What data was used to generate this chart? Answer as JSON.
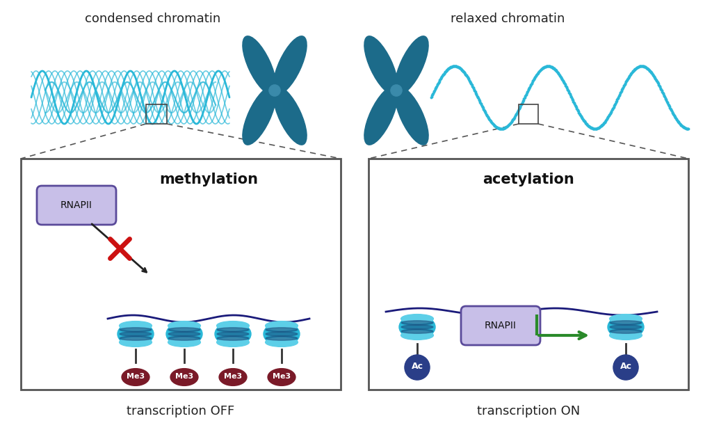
{
  "left_label": "condensed chromatin",
  "right_label": "relaxed chromatin",
  "left_process": "methylation",
  "right_process": "acetylation",
  "left_transcription": "transcription OFF",
  "right_transcription": "transcription ON",
  "left_marker": "Me3",
  "right_marker": "Ac",
  "rnapii_label": "RNAPII",
  "chromosome_color": "#1c6b8a",
  "chromatin_solid_color": "#2ab8d8",
  "chromatin_dot_color": "#2ab8d8",
  "histone_main_color": "#2ab8d8",
  "histone_top_color": "#5dcfe8",
  "histone_stripe_color": "#1a4a7a",
  "me3_color": "#7a1a28",
  "ac_color": "#2a3e88",
  "rnapii_fill": "#c8bfe8",
  "rnapii_border": "#5a4a9a",
  "arrow_green": "#2a8a2a",
  "dna_color": "#1a1a7a",
  "box_border": "#555555",
  "red_x": "#cc1111",
  "black_arrow": "#222222",
  "bg": "#ffffff"
}
